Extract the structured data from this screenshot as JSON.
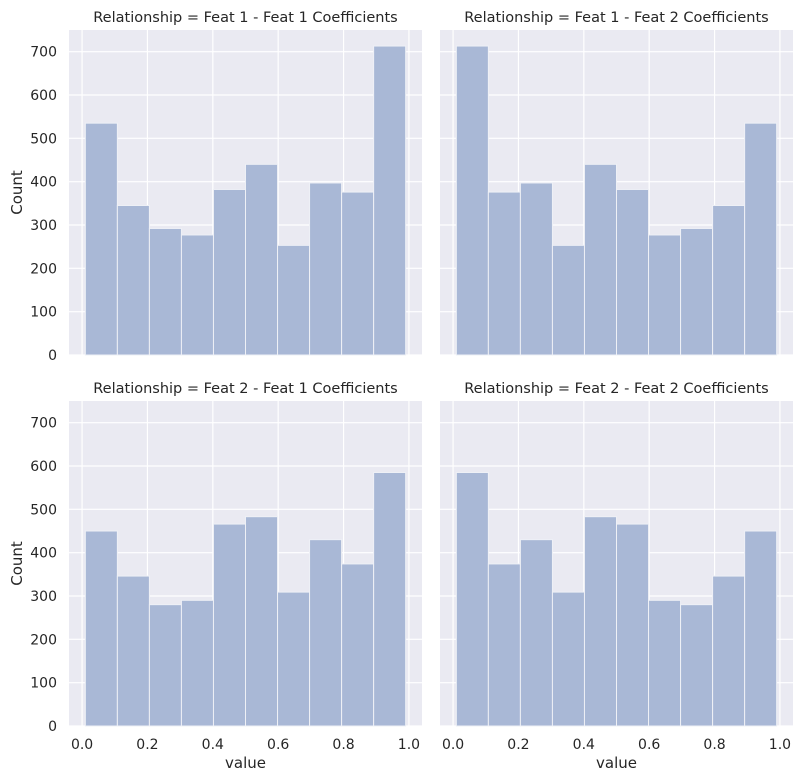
{
  "chart_data": {
    "type": "bar",
    "layout": "2x2 facet grid (shared x and y axes)",
    "bin_edges": [
      0.01,
      0.108,
      0.206,
      0.304,
      0.402,
      0.5,
      0.598,
      0.696,
      0.794,
      0.892,
      0.99
    ],
    "bar_color": "#a9b8d6",
    "panel_background": "#eaeaf2",
    "grid": true,
    "xlabel": "value",
    "ylabel": "Count",
    "xlim": [
      -0.04,
      1.04
    ],
    "ylim": [
      0,
      750
    ],
    "xticks": [
      0.0,
      0.2,
      0.4,
      0.6,
      0.8,
      1.0
    ],
    "xtick_labels": [
      "0.0",
      "0.2",
      "0.4",
      "0.6",
      "0.8",
      "1.0"
    ],
    "yticks": [
      0,
      100,
      200,
      300,
      400,
      500,
      600,
      700
    ],
    "ytick_labels": [
      "0",
      "100",
      "200",
      "300",
      "400",
      "500",
      "600",
      "700"
    ],
    "panels": [
      {
        "title": "Relationship = Feat 1 - Feat 1 Coefficients",
        "row": 0,
        "col": 0,
        "values": [
          535,
          345,
          292,
          277,
          382,
          440,
          253,
          397,
          376,
          713
        ]
      },
      {
        "title": "Relationship = Feat 1 - Feat 2 Coefficients",
        "row": 0,
        "col": 1,
        "values": [
          713,
          376,
          397,
          253,
          440,
          382,
          277,
          292,
          345,
          535
        ]
      },
      {
        "title": "Relationship = Feat 2 - Feat 1 Coefficients",
        "row": 1,
        "col": 0,
        "values": [
          450,
          346,
          280,
          290,
          466,
          483,
          309,
          430,
          374,
          585
        ]
      },
      {
        "title": "Relationship = Feat 2 - Feat 2 Coefficients",
        "row": 1,
        "col": 1,
        "values": [
          585,
          374,
          430,
          309,
          483,
          466,
          290,
          280,
          346,
          450
        ]
      }
    ]
  }
}
